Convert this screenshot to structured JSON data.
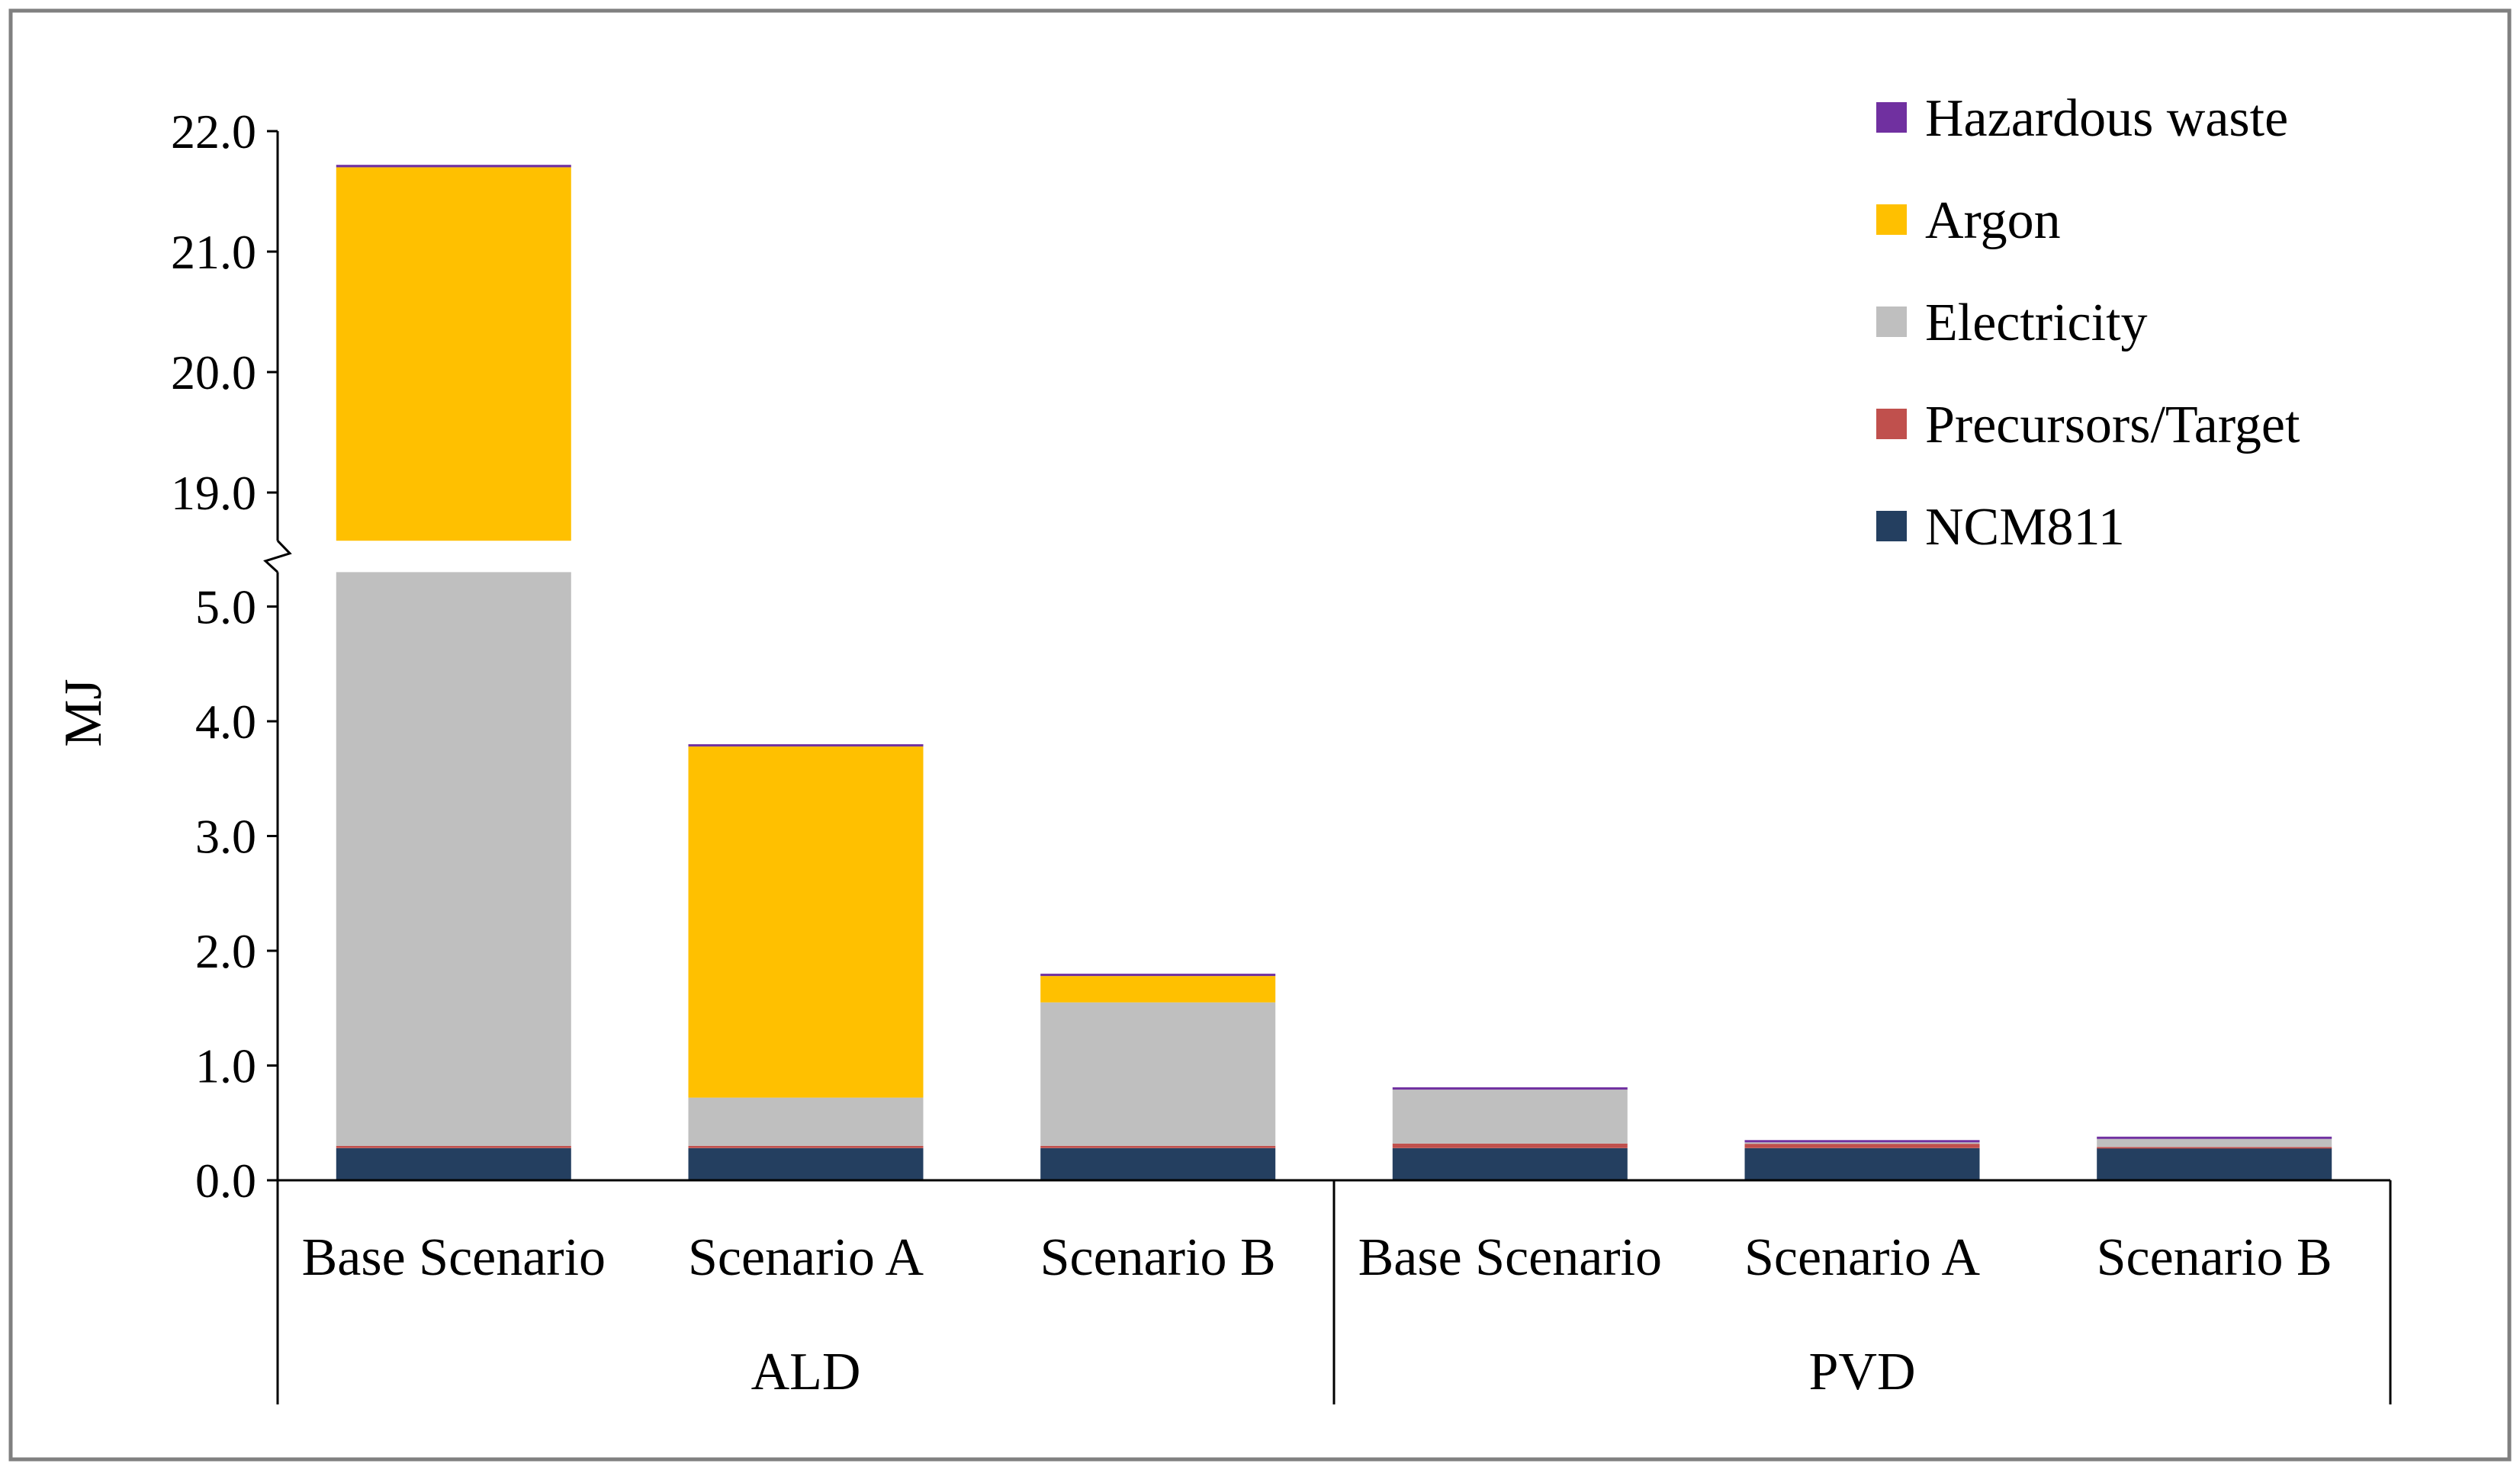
{
  "chart_data": {
    "type": "bar",
    "stacked": true,
    "ylabel": "MJ",
    "axis_break": {
      "from": 5.3,
      "to": 18.6
    },
    "lower_ticks": [
      "0.0",
      "1.0",
      "2.0",
      "3.0",
      "4.0",
      "5.0"
    ],
    "upper_ticks": [
      "19.0",
      "20.0",
      "21.0",
      "22.0"
    ],
    "categories": [
      "Base Scenario",
      "Scenario A",
      "Scenario B",
      "Base Scenario",
      "Scenario A",
      "Scenario B"
    ],
    "groups": [
      {
        "label": "ALD",
        "categories": [
          0,
          1,
          2
        ]
      },
      {
        "label": "PVD",
        "categories": [
          3,
          4,
          5
        ]
      }
    ],
    "series": [
      {
        "name": "NCM811",
        "color": "#243F60",
        "values": [
          0.28,
          0.28,
          0.28,
          0.28,
          0.28,
          0.28
        ]
      },
      {
        "name": "Precursors/Target",
        "color": "#C0504D",
        "values": [
          0.02,
          0.02,
          0.02,
          0.04,
          0.04,
          0.01
        ]
      },
      {
        "name": "Electricity",
        "color": "#BFBFBF",
        "values": [
          18.3,
          0.42,
          1.25,
          0.47,
          0.01,
          0.07
        ]
      },
      {
        "name": "Argon",
        "color": "#FFC000",
        "values": [
          3.1,
          3.06,
          0.23,
          0.0,
          0.0,
          0.0
        ]
      },
      {
        "name": "Hazardous waste",
        "color": "#7030A0",
        "values": [
          0.02,
          0.02,
          0.02,
          0.02,
          0.02,
          0.02
        ]
      }
    ],
    "legend_order": [
      "Hazardous waste",
      "Argon",
      "Electricity",
      "Precursors/Target",
      "NCM811"
    ],
    "legend_position": "top-right"
  }
}
